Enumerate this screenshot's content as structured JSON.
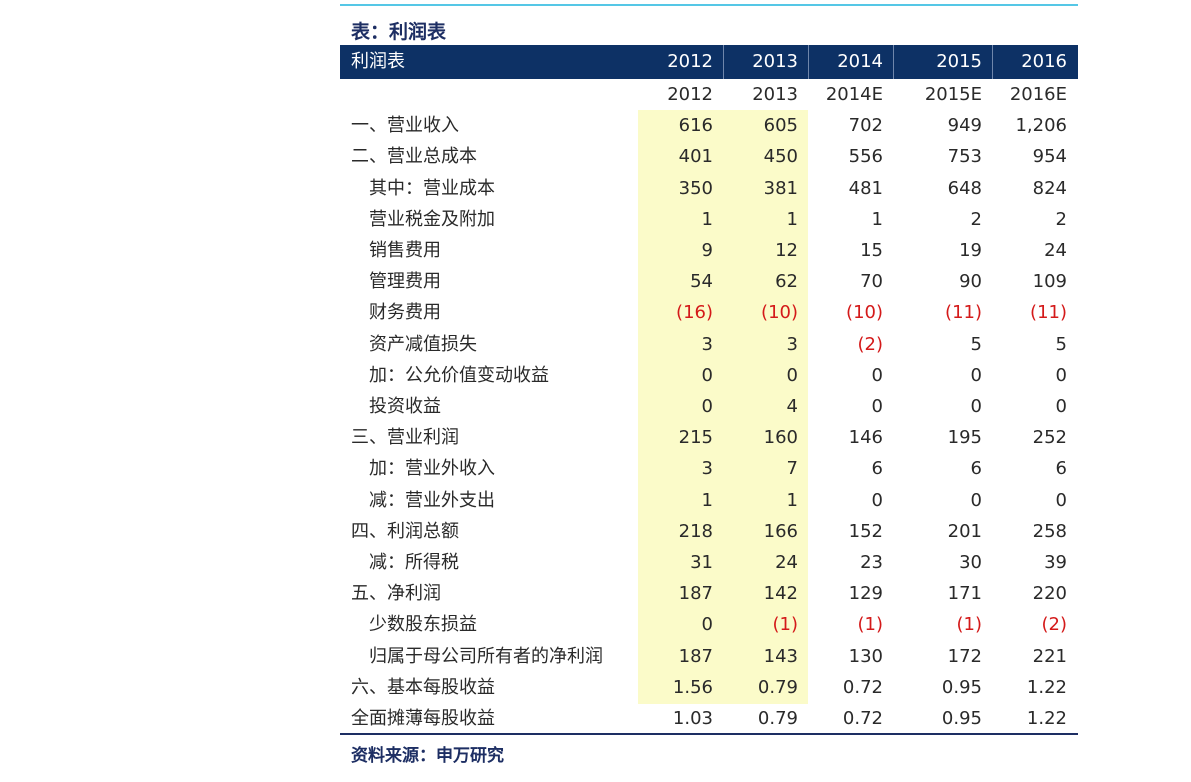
{
  "title": "表：利润表",
  "header": {
    "label": "利润表",
    "years": [
      "2012",
      "2013",
      "2014",
      "2015",
      "2016"
    ]
  },
  "subheader": [
    "2012",
    "2013",
    "2014E",
    "2015E",
    "2016E"
  ],
  "rows": [
    {
      "label": "一、营业收入",
      "indent": 0,
      "values": [
        "616",
        "605",
        "702",
        "949",
        "1,206"
      ]
    },
    {
      "label": "二、营业总成本",
      "indent": 0,
      "values": [
        "401",
        "450",
        "556",
        "753",
        "954"
      ]
    },
    {
      "label": "其中：营业成本",
      "indent": 1,
      "values": [
        "350",
        "381",
        "481",
        "648",
        "824"
      ]
    },
    {
      "label": "营业税金及附加",
      "indent": 1,
      "values": [
        "1",
        "1",
        "1",
        "2",
        "2"
      ]
    },
    {
      "label": "销售费用",
      "indent": 1,
      "values": [
        "9",
        "12",
        "15",
        "19",
        "24"
      ]
    },
    {
      "label": "管理费用",
      "indent": 1,
      "values": [
        "54",
        "62",
        "70",
        "90",
        "109"
      ]
    },
    {
      "label": "财务费用",
      "indent": 1,
      "values": [
        "(16)",
        "(10)",
        "(10)",
        "(11)",
        "(11)"
      ]
    },
    {
      "label": "资产减值损失",
      "indent": 1,
      "values": [
        "3",
        "3",
        "(2)",
        "5",
        "5"
      ]
    },
    {
      "label": "加：公允价值变动收益",
      "indent": 1,
      "values": [
        "0",
        "0",
        "0",
        "0",
        "0"
      ]
    },
    {
      "label": "投资收益",
      "indent": 1,
      "values": [
        "0",
        "4",
        "0",
        "0",
        "0"
      ]
    },
    {
      "label": "三、营业利润",
      "indent": 0,
      "values": [
        "215",
        "160",
        "146",
        "195",
        "252"
      ]
    },
    {
      "label": "加：营业外收入",
      "indent": 1,
      "values": [
        "3",
        "7",
        "6",
        "6",
        "6"
      ]
    },
    {
      "label": "减：营业外支出",
      "indent": 1,
      "values": [
        "1",
        "1",
        "0",
        "0",
        "0"
      ]
    },
    {
      "label": "四、利润总额",
      "indent": 0,
      "values": [
        "218",
        "166",
        "152",
        "201",
        "258"
      ]
    },
    {
      "label": "减：所得税",
      "indent": 1,
      "values": [
        "31",
        "24",
        "23",
        "30",
        "39"
      ]
    },
    {
      "label": "五、净利润",
      "indent": 0,
      "values": [
        "187",
        "142",
        "129",
        "171",
        "220"
      ]
    },
    {
      "label": "少数股东损益",
      "indent": 1,
      "values": [
        "0",
        "(1)",
        "(1)",
        "(1)",
        "(2)"
      ]
    },
    {
      "label": "归属于母公司所有者的净利润",
      "indent": 1,
      "values": [
        "187",
        "143",
        "130",
        "172",
        "221"
      ]
    },
    {
      "label": "六、基本每股收益",
      "indent": 0,
      "values": [
        "1.56",
        "0.79",
        "0.72",
        "0.95",
        "1.22"
      ]
    },
    {
      "label": "全面摊薄每股收益",
      "indent": 0,
      "values": [
        "1.03",
        "0.79",
        "0.72",
        "0.95",
        "1.22"
      ]
    }
  ],
  "source": "资料来源：申万研究",
  "colors": {
    "header_bg": "#0d3165",
    "highlight_bg": "#fbfbc9",
    "negative": "#d41a1a",
    "title": "#1d2e63",
    "top_rule": "#55c7e6"
  }
}
